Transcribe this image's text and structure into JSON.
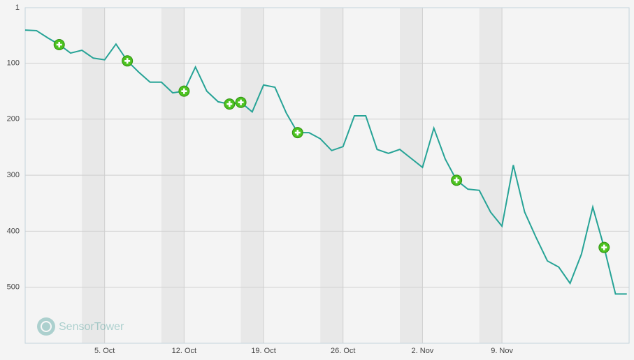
{
  "chart_data": {
    "type": "line",
    "watermark": "SensorTower",
    "x": [
      "28. Sep",
      "29. Sep",
      "30. Sep",
      "1. Oct",
      "2. Oct",
      "3. Oct",
      "4. Oct",
      "5. Oct",
      "6. Oct",
      "7. Oct",
      "8. Oct",
      "9. Oct",
      "10. Oct",
      "11. Oct",
      "12. Oct",
      "13. Oct",
      "14. Oct",
      "15. Oct",
      "16. Oct",
      "17. Oct",
      "18. Oct",
      "19. Oct",
      "20. Oct",
      "21. Oct",
      "22. Oct",
      "23. Oct",
      "24. Oct",
      "25. Oct",
      "26. Oct",
      "27. Oct",
      "28. Oct",
      "29. Oct",
      "30. Oct",
      "31. Oct",
      "1. Nov",
      "2. Nov",
      "3. Nov",
      "4. Nov",
      "5. Nov",
      "6. Nov",
      "7. Nov",
      "8. Nov",
      "9. Nov",
      "10. Nov",
      "11. Nov",
      "12. Nov",
      "13. Nov",
      "14. Nov",
      "15. Nov",
      "16. Nov",
      "17. Nov",
      "18. Nov",
      "19. Nov",
      "20. Nov"
    ],
    "series": [
      {
        "color": "#26a396",
        "values": [
          41,
          42,
          55,
          67,
          82,
          77,
          91,
          94,
          66,
          96,
          116,
          134,
          134,
          153,
          150,
          107,
          150,
          169,
          173,
          170,
          187,
          139,
          143,
          189,
          224,
          224,
          235,
          256,
          249,
          194,
          194,
          254,
          261,
          254,
          270,
          286,
          216,
          271,
          309,
          325,
          327,
          366,
          391,
          282,
          366,
          411,
          453,
          464,
          493,
          441,
          357,
          429,
          512,
          512
        ]
      }
    ],
    "updates": [
      "1. Oct",
      "7. Oct",
      "12. Oct",
      "16. Oct",
      "17. Oct",
      "22. Oct",
      "5. Nov",
      "18. Nov"
    ],
    "ylim": [
      1,
      600
    ],
    "y_inverted": true,
    "yticks": [
      1,
      100,
      200,
      300,
      400,
      500
    ],
    "xticks": [
      "5. Oct",
      "12. Oct",
      "19. Oct",
      "26. Oct",
      "2. Nov",
      "9. Nov"
    ],
    "grid": true
  }
}
